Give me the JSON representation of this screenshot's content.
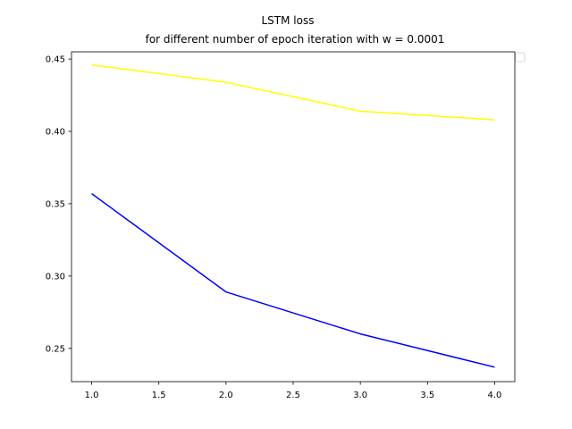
{
  "chart_data": {
    "type": "line",
    "title": "LSTM loss",
    "subtitle": "for different number of epoch iteration with w = 0.0001",
    "xlabel": "",
    "ylabel": "",
    "xlim": [
      0.85,
      4.15
    ],
    "ylim": [
      0.227,
      0.455
    ],
    "x_ticks": [
      "1.0",
      "1.5",
      "2.0",
      "2.5",
      "3.0",
      "3.5",
      "4.0"
    ],
    "y_ticks": [
      "0.25",
      "0.30",
      "0.35",
      "0.40",
      "0.45"
    ],
    "legend": {
      "location": "top-right",
      "entries": []
    },
    "grid": false,
    "series": [
      {
        "color": "#ffff00",
        "x": [
          1,
          2,
          3,
          4
        ],
        "values": [
          0.446,
          0.434,
          0.414,
          0.408
        ]
      },
      {
        "color": "#0000ff",
        "x": [
          1,
          2,
          3,
          4
        ],
        "values": [
          0.357,
          0.289,
          0.26,
          0.237
        ]
      }
    ]
  }
}
